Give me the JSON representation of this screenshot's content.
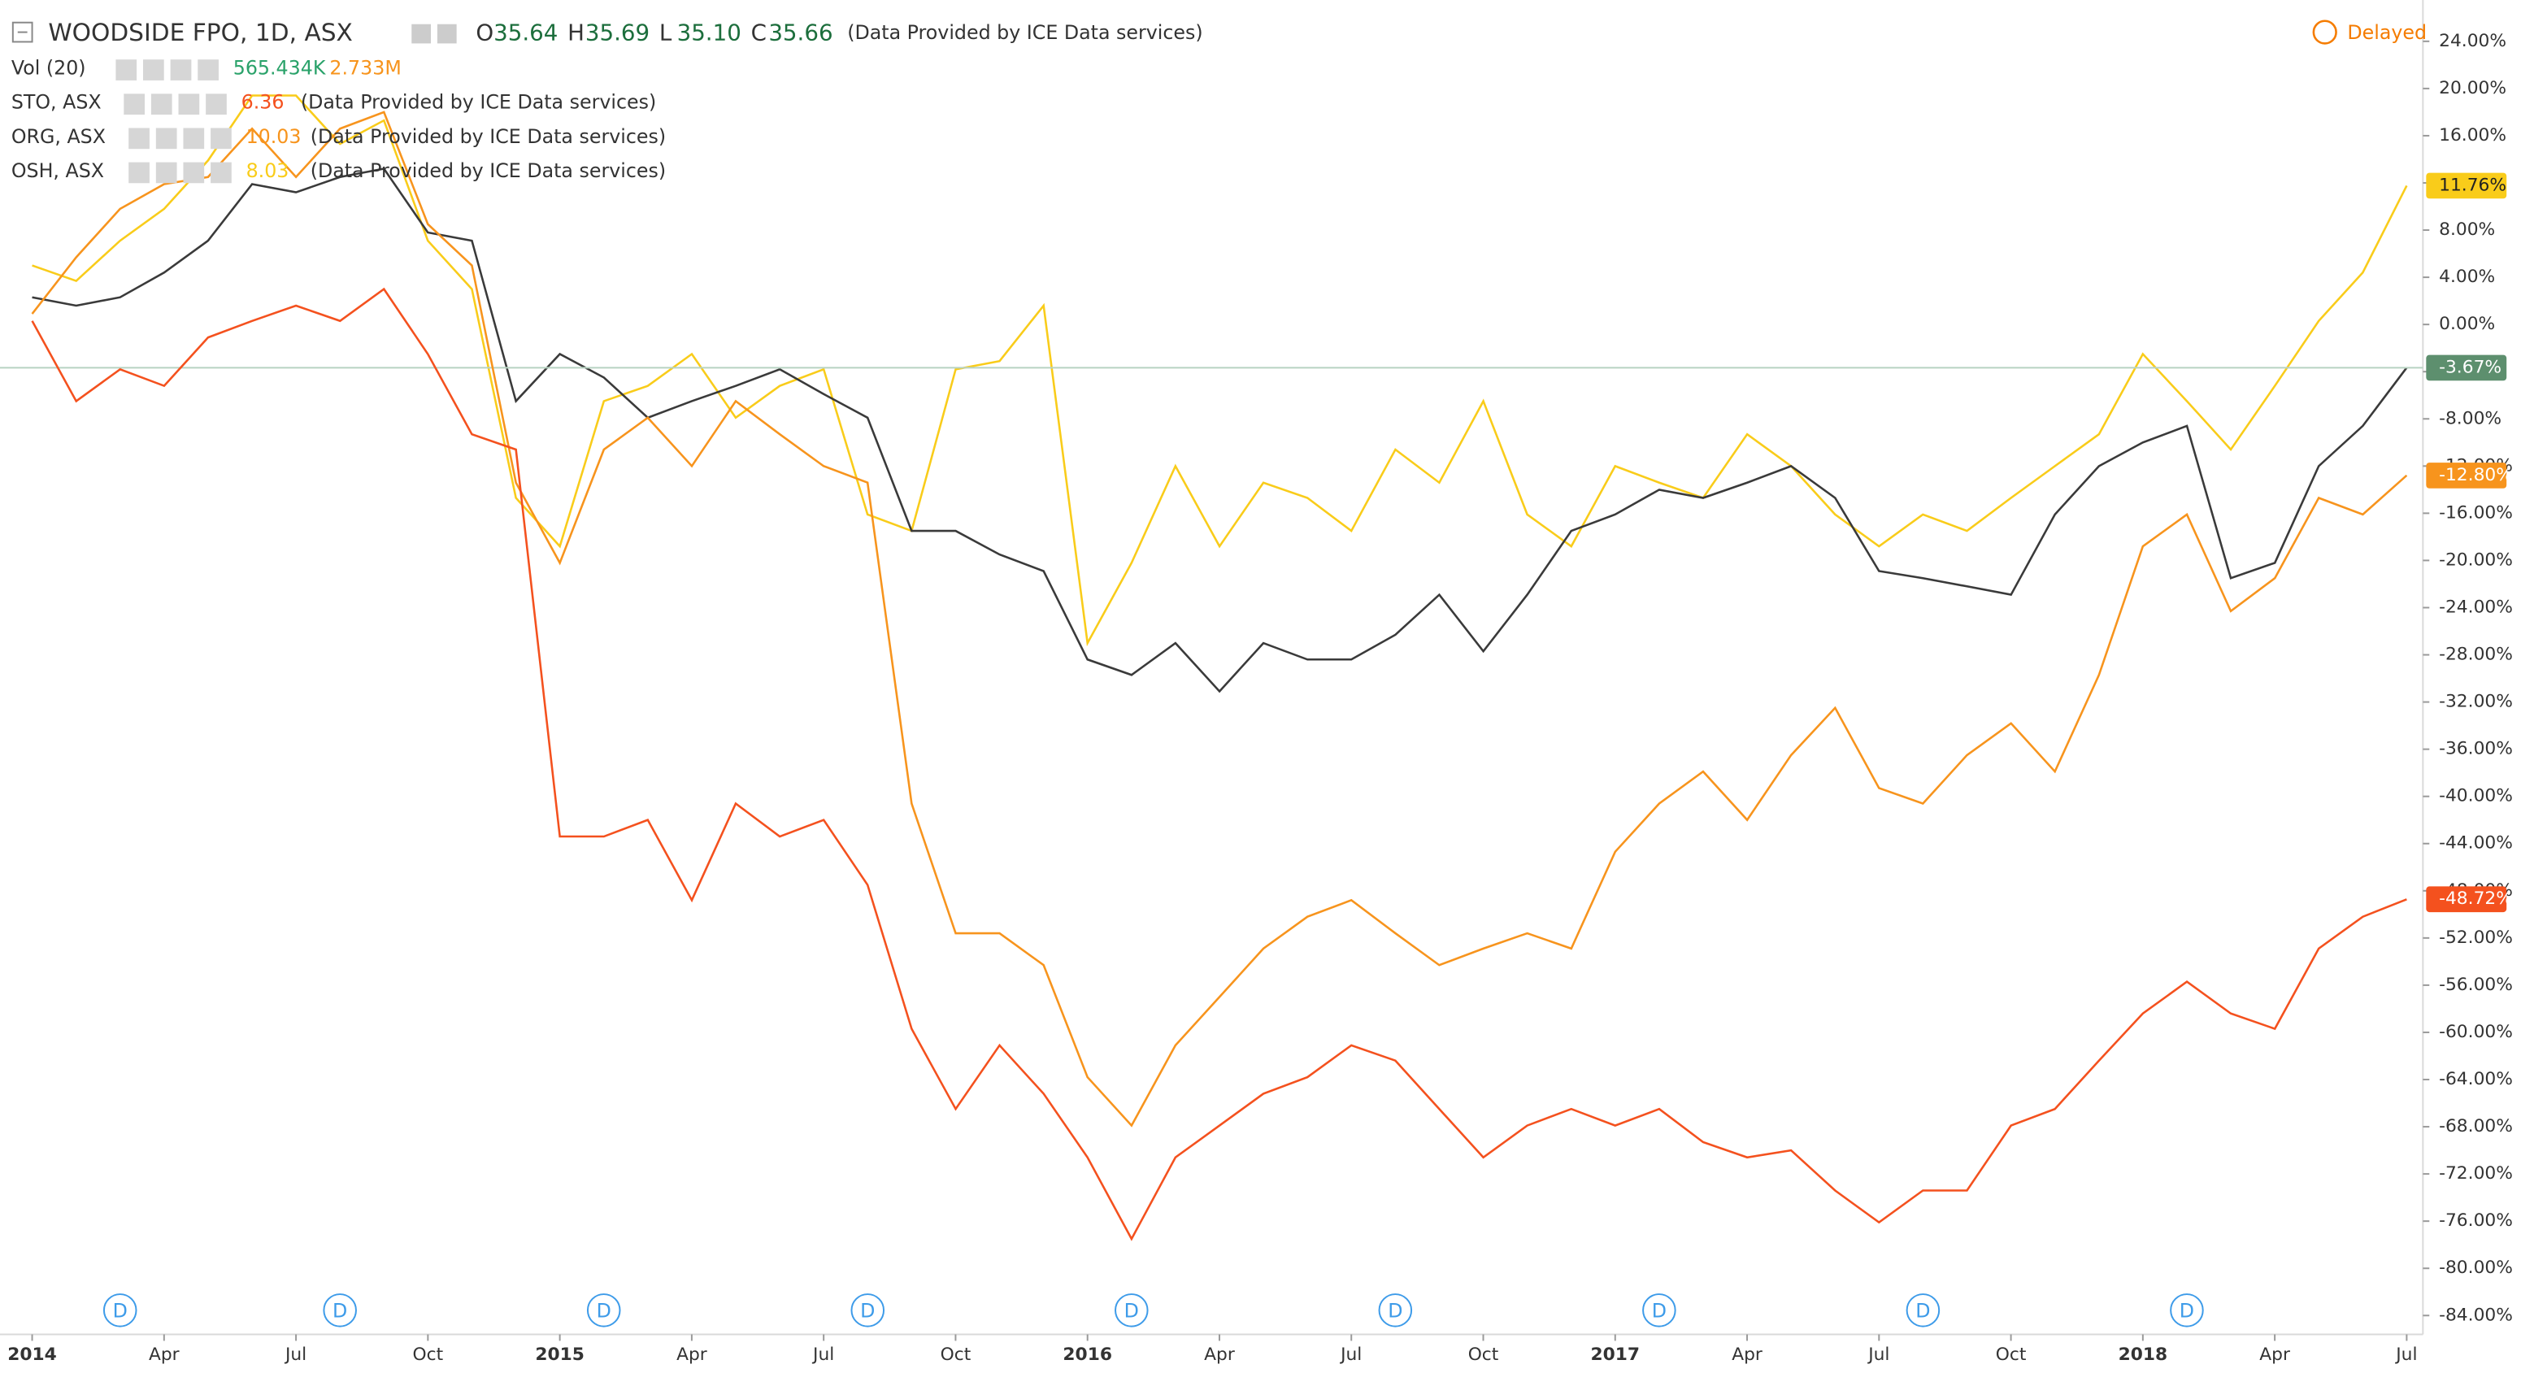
{
  "chart_data": {
    "type": "line",
    "header": {
      "symbol": "WOODSIDE FPO, 1D, ASX",
      "ohlc": [
        {
          "key": "O",
          "value": "35.64"
        },
        {
          "key": "H",
          "value": "35.69"
        },
        {
          "key": "L",
          "value": "35.10"
        },
        {
          "key": "C",
          "value": "35.66"
        }
      ],
      "source": "(Data Provided by ICE Data services)",
      "status": "Delayed",
      "studies": [
        {
          "name": "Vol (20)",
          "values": [
            "565.434K",
            "2.733M"
          ]
        },
        {
          "name": "STO, ASX",
          "values": [
            "6.36"
          ],
          "source": "(Data Provided by ICE Data services)"
        },
        {
          "name": "ORG, ASX",
          "values": [
            "10.03"
          ],
          "source": "(Data Provided by ICE Data services)"
        },
        {
          "name": "OSH, ASX",
          "values": [
            "8.03"
          ],
          "source": "(Data Provided by ICE Data services)"
        }
      ]
    },
    "x": [
      "2014-01",
      "2014-02",
      "2014-03",
      "2014-04",
      "2014-05",
      "2014-06",
      "2014-07",
      "2014-08",
      "2014-09",
      "2014-10",
      "2014-11",
      "2014-12",
      "2015-01",
      "2015-02",
      "2015-03",
      "2015-04",
      "2015-05",
      "2015-06",
      "2015-07",
      "2015-08",
      "2015-09",
      "2015-10",
      "2015-11",
      "2015-12",
      "2016-01",
      "2016-02",
      "2016-03",
      "2016-04",
      "2016-05",
      "2016-06",
      "2016-07",
      "2016-08",
      "2016-09",
      "2016-10",
      "2016-11",
      "2016-12",
      "2017-01",
      "2017-02",
      "2017-03",
      "2017-04",
      "2017-05",
      "2017-06",
      "2017-07",
      "2017-08",
      "2017-09",
      "2017-10",
      "2017-11",
      "2017-12",
      "2018-01",
      "2018-02",
      "2018-03",
      "2018-04",
      "2018-05",
      "2018-06",
      "2018-07"
    ],
    "xticks": [
      {
        "value": "2014-01",
        "label": "2014"
      },
      {
        "value": "2014-04",
        "label": "Apr"
      },
      {
        "value": "2014-07",
        "label": "Jul"
      },
      {
        "value": "2014-10",
        "label": "Oct"
      },
      {
        "value": "2015-01",
        "label": "2015"
      },
      {
        "value": "2015-04",
        "label": "Apr"
      },
      {
        "value": "2015-07",
        "label": "Jul"
      },
      {
        "value": "2015-10",
        "label": "Oct"
      },
      {
        "value": "2016-01",
        "label": "2016"
      },
      {
        "value": "2016-04",
        "label": "Apr"
      },
      {
        "value": "2016-07",
        "label": "Jul"
      },
      {
        "value": "2016-10",
        "label": "Oct"
      },
      {
        "value": "2017-01",
        "label": "2017"
      },
      {
        "value": "2017-04",
        "label": "Apr"
      },
      {
        "value": "2017-07",
        "label": "Jul"
      },
      {
        "value": "2017-10",
        "label": "Oct"
      },
      {
        "value": "2018-01",
        "label": "2018"
      },
      {
        "value": "2018-04",
        "label": "Apr"
      },
      {
        "value": "2018-07",
        "label": "Jul"
      }
    ],
    "ylim": [
      -85.6,
      27.5
    ],
    "yticks": [
      {
        "value": 24,
        "label": "24.00%"
      },
      {
        "value": 20,
        "label": "20.00%"
      },
      {
        "value": 16,
        "label": "16.00%"
      },
      {
        "value": 12,
        "label": "12.00%"
      },
      {
        "value": 8,
        "label": "8.00%"
      },
      {
        "value": 4,
        "label": "4.00%"
      },
      {
        "value": 0,
        "label": "0.00%"
      },
      {
        "value": -4,
        "label": "-4.00%"
      },
      {
        "value": -8,
        "label": "-8.00%"
      },
      {
        "value": -12,
        "label": "-12.00%"
      },
      {
        "value": -16,
        "label": "-16.00%"
      },
      {
        "value": -20,
        "label": "-20.00%"
      },
      {
        "value": -24,
        "label": "-24.00%"
      },
      {
        "value": -28,
        "label": "-28.00%"
      },
      {
        "value": -32,
        "label": "-32.00%"
      },
      {
        "value": -36,
        "label": "-36.00%"
      },
      {
        "value": -40,
        "label": "-40.00%"
      },
      {
        "value": -44,
        "label": "-44.00%"
      },
      {
        "value": -48,
        "label": "-48.00%"
      },
      {
        "value": -52,
        "label": "-52.00%"
      },
      {
        "value": -56,
        "label": "-56.00%"
      },
      {
        "value": -60,
        "label": "-60.00%"
      },
      {
        "value": -64,
        "label": "-64.00%"
      },
      {
        "value": -68,
        "label": "-68.00%"
      },
      {
        "value": -72,
        "label": "-72.00%"
      },
      {
        "value": -76,
        "label": "-76.00%"
      },
      {
        "value": -80,
        "label": "-80.00%"
      },
      {
        "value": -84,
        "label": "-84.00%"
      }
    ],
    "grid": false,
    "series": [
      {
        "name": "OSH, ASX",
        "color": "#f9cc1a",
        "badge_text": "#222222",
        "values": [
          5.0,
          3.7,
          7.1,
          9.8,
          13.9,
          19.4,
          19.4,
          15.3,
          17.3,
          7.1,
          3.0,
          -14.7,
          -18.8,
          -6.5,
          -5.2,
          -2.5,
          -7.9,
          -5.2,
          -3.8,
          -16.1,
          -17.5,
          -3.8,
          -3.1,
          1.6,
          -27,
          -20.2,
          -12,
          -18.8,
          -13.4,
          -14.7,
          -17.5,
          -10.6,
          -13.4,
          -6.5,
          -16.1,
          -18.8,
          -12,
          -13.4,
          -14.7,
          -9.3,
          -12,
          -16.1,
          -18.8,
          -16.1,
          -17.5,
          -14.7,
          -12,
          -9.3,
          -2.5,
          -6.5,
          -10.6,
          -5.2,
          0.3,
          4.4,
          11.76
        ],
        "value_labels": [
          null,
          null,
          null,
          null,
          null,
          null,
          null,
          null,
          null,
          null,
          null,
          null,
          null,
          null,
          null,
          null,
          null,
          null,
          null,
          null,
          null,
          null,
          null,
          null,
          null,
          null,
          null,
          null,
          null,
          null,
          null,
          null,
          null,
          null,
          null,
          null,
          null,
          null,
          null,
          null,
          null,
          null,
          null,
          null,
          null,
          null,
          null,
          null,
          null,
          null,
          null,
          null,
          null,
          null,
          "11.76%"
        ]
      },
      {
        "name": "WOODSIDE FPO, 1D, ASX",
        "color": "#3a3a3a",
        "badge_color": "#5d8f6e",
        "badge_text": "#ffffff",
        "values": [
          2.3,
          1.6,
          2.3,
          4.4,
          7.1,
          11.9,
          11.2,
          12.5,
          13.2,
          7.8,
          7.1,
          -6.5,
          -2.5,
          -4.5,
          -7.9,
          -6.5,
          -5.2,
          -3.8,
          -5.9,
          -7.9,
          -17.5,
          -17.5,
          -19.5,
          -20.9,
          -28.4,
          -29.7,
          -27,
          -31.1,
          -27,
          -28.4,
          -28.4,
          -26.3,
          -22.9,
          -27.7,
          -22.9,
          -17.5,
          -16.1,
          -14,
          -14.7,
          -13.4,
          -12,
          -14.7,
          -20.9,
          -21.5,
          -22.2,
          -22.9,
          -16.1,
          -12,
          -10,
          -8.6,
          -21.5,
          -20.2,
          -12,
          -8.6,
          -3.67
        ],
        "value_labels": [
          null,
          null,
          null,
          null,
          null,
          null,
          null,
          null,
          null,
          null,
          null,
          null,
          null,
          null,
          null,
          null,
          null,
          null,
          null,
          null,
          null,
          null,
          null,
          null,
          null,
          null,
          null,
          null,
          null,
          null,
          null,
          null,
          null,
          null,
          null,
          null,
          null,
          null,
          null,
          null,
          null,
          null,
          null,
          null,
          null,
          null,
          null,
          null,
          null,
          null,
          null,
          null,
          null,
          null,
          "-3.67%"
        ]
      },
      {
        "name": "ORG, ASX",
        "color": "#f7941d",
        "badge_text": "#ffffff",
        "values": [
          0.9,
          5.7,
          9.8,
          11.9,
          12.5,
          16.6,
          12.5,
          16.6,
          18,
          8.5,
          5,
          -13.4,
          -20.2,
          -10.6,
          -7.9,
          -12,
          -6.5,
          -9.3,
          -12,
          -13.4,
          -40.6,
          -51.6,
          -51.6,
          -54.3,
          -63.8,
          -67.9,
          -61.1,
          -57,
          -52.9,
          -50.2,
          -48.8,
          -51.6,
          -54.3,
          -52.9,
          -51.6,
          -52.9,
          -44.7,
          -40.6,
          -37.9,
          -42,
          -36.5,
          -32.5,
          -39.3,
          -40.6,
          -36.5,
          -33.8,
          -37.9,
          -29.7,
          -18.8,
          -16.1,
          -24.3,
          -21.5,
          -14.7,
          -16.1,
          -12.8
        ],
        "value_labels": [
          null,
          null,
          null,
          null,
          null,
          null,
          null,
          null,
          null,
          null,
          null,
          null,
          null,
          null,
          null,
          null,
          null,
          null,
          null,
          null,
          null,
          null,
          null,
          null,
          null,
          null,
          null,
          null,
          null,
          null,
          null,
          null,
          null,
          null,
          null,
          null,
          null,
          null,
          null,
          null,
          null,
          null,
          null,
          null,
          null,
          null,
          null,
          null,
          null,
          null,
          null,
          null,
          null,
          null,
          "-12.80%"
        ]
      },
      {
        "name": "STO, ASX",
        "color": "#f4511e",
        "badge_text": "#ffffff",
        "values": [
          0.3,
          -6.5,
          -3.8,
          -5.2,
          -1.1,
          0.3,
          1.6,
          0.3,
          3,
          -2.5,
          -9.3,
          -10.6,
          -43.4,
          -43.4,
          -42,
          -48.8,
          -40.6,
          -43.4,
          -42,
          -47.5,
          -59.7,
          -66.5,
          -61.1,
          -65.2,
          -70.6,
          -77.5,
          -70.6,
          -67.9,
          -65.2,
          -63.8,
          -61.1,
          -62.4,
          -66.5,
          -70.6,
          -67.9,
          -66.5,
          -67.9,
          -66.5,
          -69.3,
          -70.6,
          -70,
          -73.4,
          -76.1,
          -73.4,
          -73.4,
          -67.9,
          -66.5,
          -62.4,
          -58.4,
          -55.7,
          -58.4,
          -59.7,
          -52.9,
          -50.2,
          -48.72
        ],
        "value_labels": [
          null,
          null,
          null,
          null,
          null,
          null,
          null,
          null,
          null,
          null,
          null,
          null,
          null,
          null,
          null,
          null,
          null,
          null,
          null,
          null,
          null,
          null,
          null,
          null,
          null,
          null,
          null,
          null,
          null,
          null,
          null,
          null,
          null,
          null,
          null,
          null,
          null,
          null,
          null,
          null,
          null,
          null,
          null,
          null,
          null,
          null,
          null,
          null,
          null,
          null,
          null,
          null,
          null,
          null,
          "-48.72%"
        ]
      }
    ],
    "dividends": [
      {
        "x": "2014-03",
        "label": "D"
      },
      {
        "x": "2014-08",
        "label": "D"
      },
      {
        "x": "2015-02",
        "label": "D"
      },
      {
        "x": "2015-08",
        "label": "D"
      },
      {
        "x": "2016-02",
        "label": "D"
      },
      {
        "x": "2016-08",
        "label": "D"
      },
      {
        "x": "2017-02",
        "label": "D"
      },
      {
        "x": "2017-08",
        "label": "D"
      },
      {
        "x": "2018-02",
        "label": "D"
      }
    ]
  }
}
